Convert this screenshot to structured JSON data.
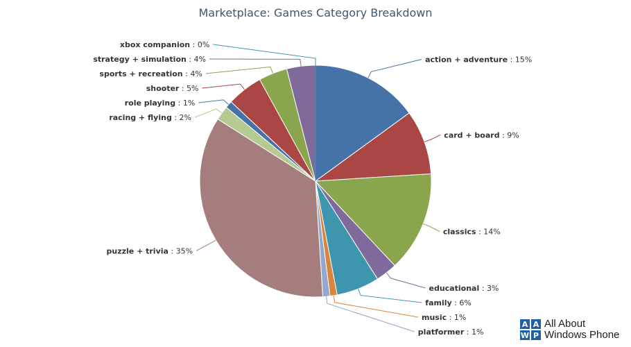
{
  "chart_data": {
    "type": "pie",
    "title": "Marketplace: Games Category Breakdown",
    "slices": [
      {
        "name": "action + adventure",
        "value": 15,
        "label": "15%",
        "color": "#4572a7"
      },
      {
        "name": "card + board",
        "value": 9,
        "label": "9%",
        "color": "#aa4643"
      },
      {
        "name": "classics",
        "value": 14,
        "label": "14%",
        "color": "#89a54e"
      },
      {
        "name": "educational",
        "value": 3,
        "label": "3%",
        "color": "#80699b"
      },
      {
        "name": "family",
        "value": 6,
        "label": "6%",
        "color": "#3d96ae"
      },
      {
        "name": "music",
        "value": 1,
        "label": "1%",
        "color": "#db843d"
      },
      {
        "name": "platformer",
        "value": 1,
        "label": "1%",
        "color": "#92a8cd"
      },
      {
        "name": "puzzle + trivia",
        "value": 35,
        "label": "35%",
        "color": "#a47d7c"
      },
      {
        "name": "racing + flying",
        "value": 2,
        "label": "2%",
        "color": "#b5ca92"
      },
      {
        "name": "role playing",
        "value": 1,
        "label": "1%",
        "color": "#4572a7"
      },
      {
        "name": "shooter",
        "value": 5,
        "label": "5%",
        "color": "#aa4643"
      },
      {
        "name": "sports + recreation",
        "value": 4,
        "label": "4%",
        "color": "#89a54e"
      },
      {
        "name": "strategy + simulation",
        "value": 4,
        "label": "4%",
        "color": "#80699b"
      },
      {
        "name": "xbox companion",
        "value": 0,
        "label": "0%",
        "color": "#3d96ae"
      }
    ]
  },
  "branding": {
    "logo_letters": [
      "A",
      "A",
      "W",
      "P"
    ],
    "logo_colors": [
      "#1f5fa6",
      "#1f5fa6",
      "#1f5fa6",
      "#1f5fa6"
    ],
    "line1": "All About",
    "line2": "Windows Phone"
  }
}
